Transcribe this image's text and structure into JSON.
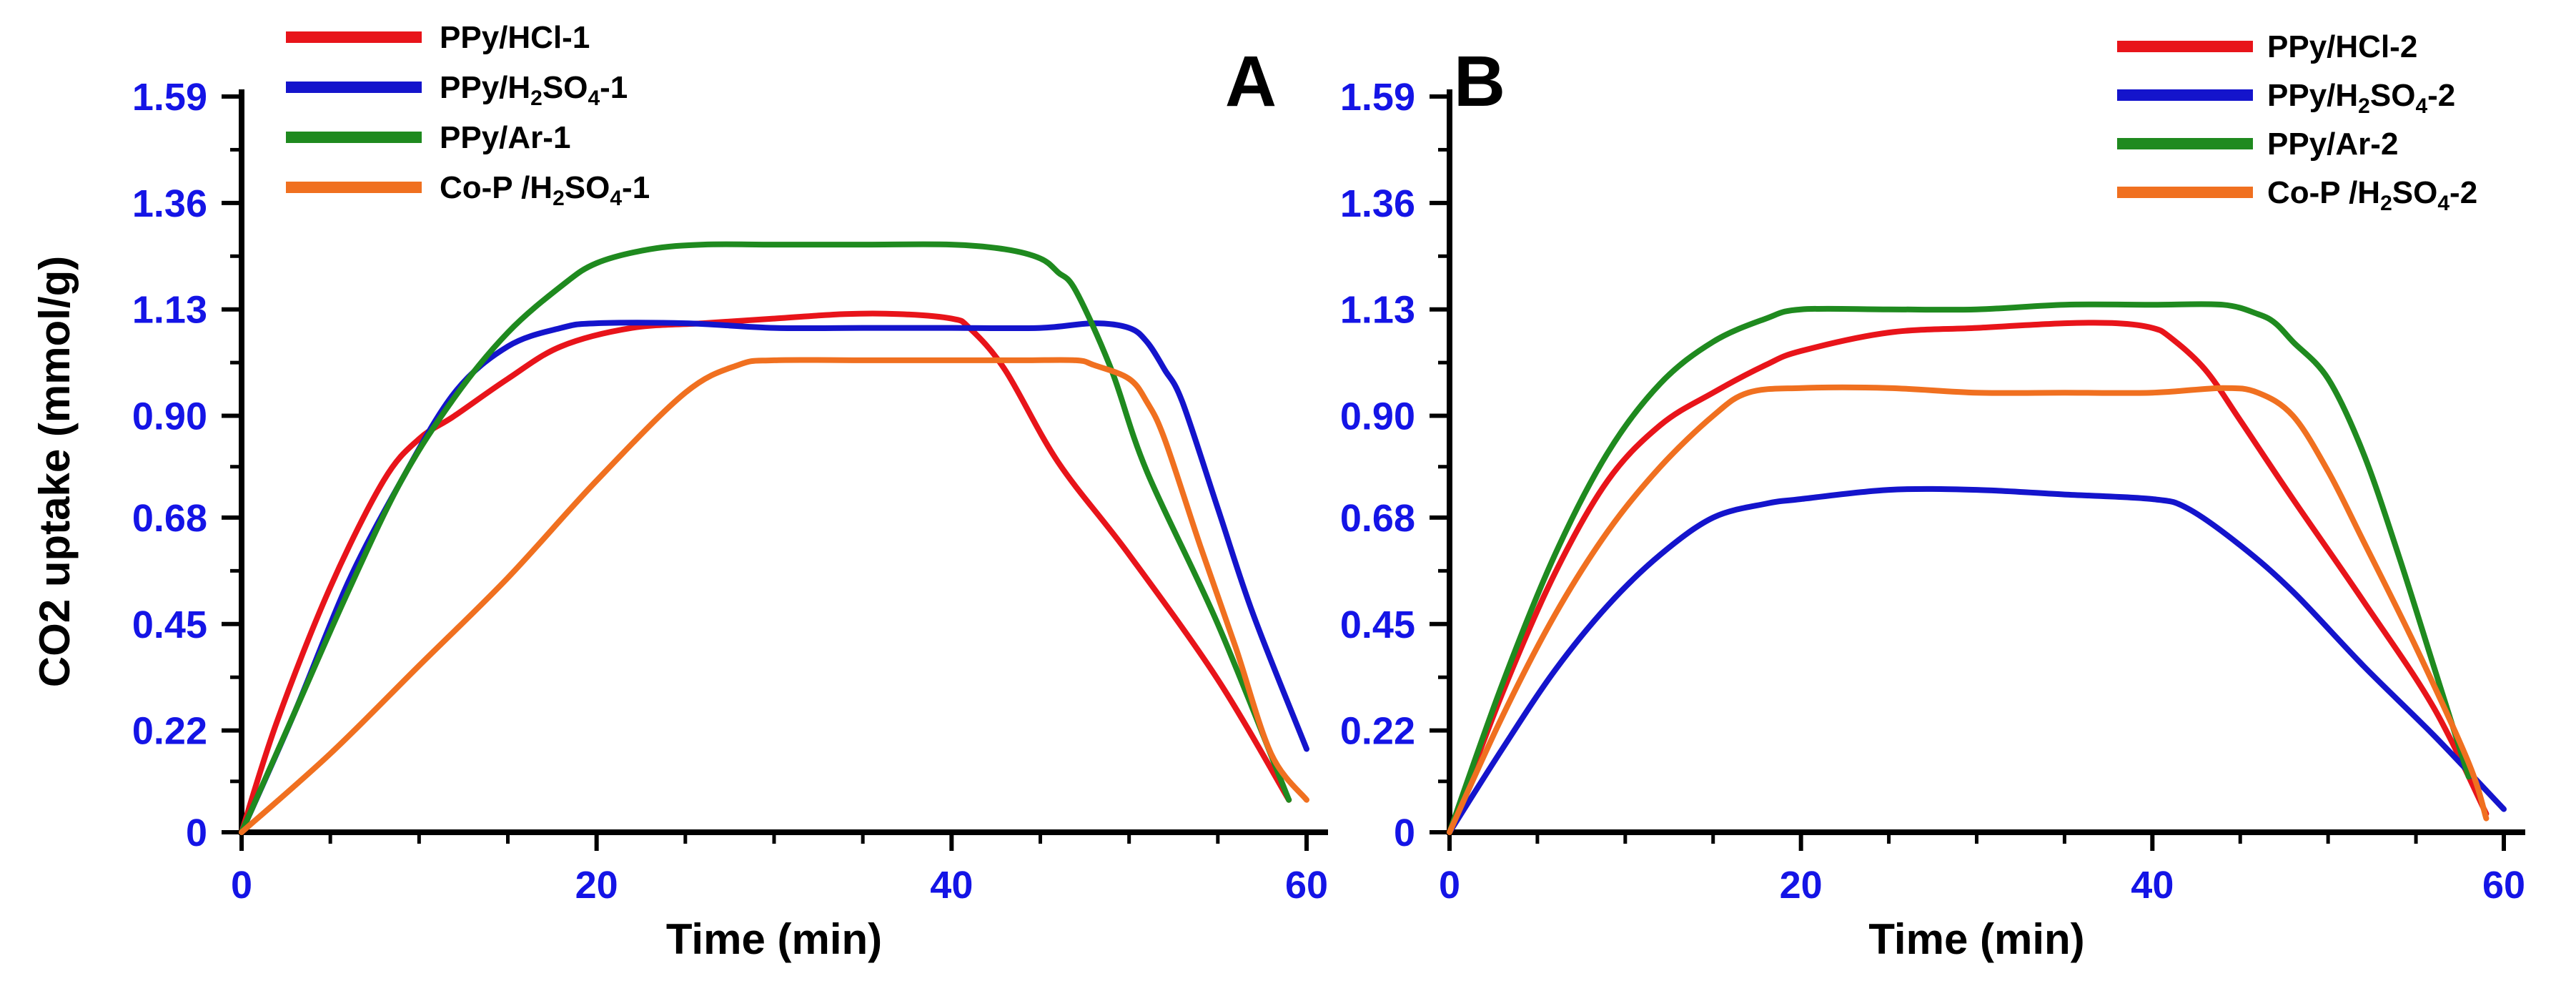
{
  "chart_data": [
    {
      "type": "line",
      "panel_label": "A",
      "xlabel": "Time (min)",
      "ylabel": "CO2 uptake (mmol/g)",
      "xlim": [
        0,
        60
      ],
      "ylim": [
        0,
        1.59
      ],
      "x_ticks": [
        0,
        20,
        40,
        60
      ],
      "y_ticks": [
        0,
        0.22,
        0.45,
        0.68,
        0.9,
        1.13,
        1.36,
        1.59
      ],
      "y_tick_labels": [
        "0",
        "0.22",
        "0.45",
        "0.68",
        "0.90",
        "1.13",
        "1.36",
        "1.59"
      ],
      "legend_position": "top-left",
      "series": [
        {
          "name": "PPy/HCl-1",
          "legend_parts": [
            [
              "PPy/HCl-1",
              ""
            ]
          ],
          "color": "#e8141a",
          "points": [
            [
              0,
              0
            ],
            [
              2,
              0.24
            ],
            [
              5,
              0.53
            ],
            [
              8,
              0.76
            ],
            [
              10,
              0.85
            ],
            [
              12,
              0.9
            ],
            [
              15,
              0.98
            ],
            [
              18,
              1.05
            ],
            [
              22,
              1.09
            ],
            [
              26,
              1.1
            ],
            [
              30,
              1.11
            ],
            [
              34,
              1.12
            ],
            [
              37,
              1.12
            ],
            [
              40,
              1.11
            ],
            [
              41,
              1.09
            ],
            [
              43,
              1.0
            ],
            [
              46,
              0.8
            ],
            [
              50,
              0.6
            ],
            [
              55,
              0.33
            ],
            [
              59,
              0.07
            ]
          ]
        },
        {
          "name": "PPy/H2SO4-1",
          "legend_parts": [
            [
              "PPy/H",
              ""
            ],
            [
              "2",
              "sub"
            ],
            [
              "SO",
              ""
            ],
            [
              "4",
              "sub"
            ],
            [
              "-1",
              ""
            ]
          ],
          "color": "#1414cc",
          "points": [
            [
              0,
              0
            ],
            [
              3,
              0.26
            ],
            [
              6,
              0.54
            ],
            [
              9,
              0.76
            ],
            [
              12,
              0.95
            ],
            [
              15,
              1.05
            ],
            [
              18,
              1.09
            ],
            [
              20,
              1.1
            ],
            [
              25,
              1.1
            ],
            [
              30,
              1.09
            ],
            [
              35,
              1.09
            ],
            [
              40,
              1.09
            ],
            [
              45,
              1.09
            ],
            [
              48,
              1.1
            ],
            [
              50,
              1.09
            ],
            [
              51,
              1.06
            ],
            [
              52,
              1.0
            ],
            [
              53,
              0.93
            ],
            [
              55,
              0.7
            ],
            [
              57,
              0.47
            ],
            [
              60,
              0.18
            ]
          ]
        },
        {
          "name": "PPy/Ar-1",
          "legend_parts": [
            [
              "PPy/Ar-1",
              ""
            ]
          ],
          "color": "#1f8a1f",
          "points": [
            [
              0,
              0
            ],
            [
              3,
              0.26
            ],
            [
              6,
              0.52
            ],
            [
              9,
              0.76
            ],
            [
              12,
              0.94
            ],
            [
              15,
              1.08
            ],
            [
              18,
              1.18
            ],
            [
              20,
              1.23
            ],
            [
              23,
              1.26
            ],
            [
              26,
              1.27
            ],
            [
              30,
              1.27
            ],
            [
              35,
              1.27
            ],
            [
              40,
              1.27
            ],
            [
              43,
              1.26
            ],
            [
              45,
              1.24
            ],
            [
              46,
              1.21
            ],
            [
              47,
              1.17
            ],
            [
              49,
              1.0
            ],
            [
              51,
              0.78
            ],
            [
              55,
              0.45
            ],
            [
              59,
              0.07
            ]
          ]
        },
        {
          "name": "Co-P /H2SO4-1",
          "legend_parts": [
            [
              "Co-P /H",
              ""
            ],
            [
              "2",
              "sub"
            ],
            [
              "SO",
              ""
            ],
            [
              "4",
              "sub"
            ],
            [
              "-1",
              ""
            ]
          ],
          "color": "#f07020",
          "points": [
            [
              0,
              0
            ],
            [
              5,
              0.17
            ],
            [
              10,
              0.36
            ],
            [
              15,
              0.55
            ],
            [
              20,
              0.76
            ],
            [
              25,
              0.95
            ],
            [
              28,
              1.01
            ],
            [
              30,
              1.02
            ],
            [
              35,
              1.02
            ],
            [
              40,
              1.02
            ],
            [
              44,
              1.02
            ],
            [
              47,
              1.02
            ],
            [
              48,
              1.01
            ],
            [
              50,
              0.98
            ],
            [
              51,
              0.93
            ],
            [
              52,
              0.85
            ],
            [
              54,
              0.62
            ],
            [
              56,
              0.4
            ],
            [
              58,
              0.17
            ],
            [
              60,
              0.07
            ]
          ]
        }
      ]
    },
    {
      "type": "line",
      "panel_label": "B",
      "xlabel": "Time (min)",
      "ylabel": "",
      "xlim": [
        0,
        60
      ],
      "ylim": [
        0,
        1.59
      ],
      "x_ticks": [
        0,
        20,
        40,
        60
      ],
      "y_ticks": [
        0,
        0.22,
        0.45,
        0.68,
        0.9,
        1.13,
        1.36,
        1.59
      ],
      "y_tick_labels": [
        "0",
        "0.22",
        "0.45",
        "0.68",
        "0.90",
        "1.13",
        "1.36",
        "1.59"
      ],
      "legend_position": "top-right",
      "series": [
        {
          "name": "PPy/HCl-2",
          "legend_parts": [
            [
              "PPy/HCl-2",
              ""
            ]
          ],
          "color": "#e8141a",
          "points": [
            [
              0,
              0
            ],
            [
              3,
              0.3
            ],
            [
              6,
              0.56
            ],
            [
              9,
              0.76
            ],
            [
              12,
              0.88
            ],
            [
              15,
              0.95
            ],
            [
              18,
              1.01
            ],
            [
              20,
              1.04
            ],
            [
              25,
              1.08
            ],
            [
              30,
              1.09
            ],
            [
              35,
              1.1
            ],
            [
              38,
              1.1
            ],
            [
              40,
              1.09
            ],
            [
              41,
              1.07
            ],
            [
              43,
              1.0
            ],
            [
              45,
              0.89
            ],
            [
              48,
              0.72
            ],
            [
              52,
              0.5
            ],
            [
              56,
              0.27
            ],
            [
              59,
              0.04
            ]
          ]
        },
        {
          "name": "PPy/H2SO4-2",
          "legend_parts": [
            [
              "PPy/H",
              ""
            ],
            [
              "2",
              "sub"
            ],
            [
              "SO",
              ""
            ],
            [
              "4",
              "sub"
            ],
            [
              "-2",
              ""
            ]
          ],
          "color": "#1414cc",
          "points": [
            [
              0,
              0
            ],
            [
              3,
              0.18
            ],
            [
              6,
              0.35
            ],
            [
              9,
              0.49
            ],
            [
              12,
              0.6
            ],
            [
              15,
              0.68
            ],
            [
              18,
              0.71
            ],
            [
              20,
              0.72
            ],
            [
              25,
              0.74
            ],
            [
              30,
              0.74
            ],
            [
              35,
              0.73
            ],
            [
              40,
              0.72
            ],
            [
              42,
              0.7
            ],
            [
              45,
              0.62
            ],
            [
              48,
              0.52
            ],
            [
              52,
              0.36
            ],
            [
              56,
              0.21
            ],
            [
              60,
              0.05
            ]
          ]
        },
        {
          "name": "PPy/Ar-2",
          "legend_parts": [
            [
              "PPy/Ar-2",
              ""
            ]
          ],
          "color": "#1f8a1f",
          "points": [
            [
              0,
              0
            ],
            [
              3,
              0.32
            ],
            [
              6,
              0.6
            ],
            [
              9,
              0.82
            ],
            [
              12,
              0.97
            ],
            [
              15,
              1.06
            ],
            [
              18,
              1.11
            ],
            [
              20,
              1.13
            ],
            [
              25,
              1.13
            ],
            [
              30,
              1.13
            ],
            [
              35,
              1.14
            ],
            [
              40,
              1.14
            ],
            [
              44,
              1.14
            ],
            [
              46,
              1.12
            ],
            [
              47,
              1.1
            ],
            [
              48,
              1.06
            ],
            [
              50,
              0.98
            ],
            [
              52,
              0.82
            ],
            [
              54,
              0.6
            ],
            [
              56,
              0.36
            ],
            [
              58,
              0.12
            ]
          ]
        },
        {
          "name": "Co-P /H2SO4-2",
          "legend_parts": [
            [
              "Co-P /H",
              ""
            ],
            [
              "2",
              "sub"
            ],
            [
              "SO",
              ""
            ],
            [
              "4",
              "sub"
            ],
            [
              "-2",
              ""
            ]
          ],
          "color": "#f07020",
          "points": [
            [
              0,
              0
            ],
            [
              3,
              0.25
            ],
            [
              6,
              0.47
            ],
            [
              9,
              0.65
            ],
            [
              12,
              0.79
            ],
            [
              15,
              0.9
            ],
            [
              17,
              0.95
            ],
            [
              20,
              0.96
            ],
            [
              25,
              0.96
            ],
            [
              30,
              0.95
            ],
            [
              35,
              0.95
            ],
            [
              40,
              0.95
            ],
            [
              44,
              0.96
            ],
            [
              46,
              0.95
            ],
            [
              48,
              0.9
            ],
            [
              50,
              0.78
            ],
            [
              52,
              0.63
            ],
            [
              55,
              0.4
            ],
            [
              58,
              0.15
            ],
            [
              59,
              0.03
            ]
          ]
        }
      ]
    }
  ]
}
